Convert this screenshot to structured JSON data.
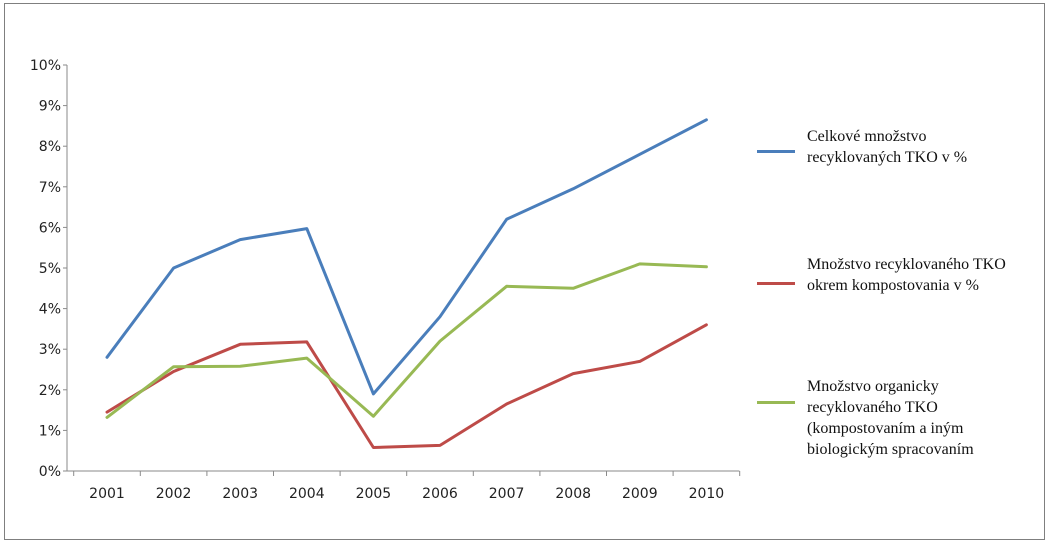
{
  "chart_data": {
    "type": "line",
    "title": "",
    "xlabel": "",
    "ylabel": "",
    "ylim": [
      0,
      10
    ],
    "y_tick_labels": [
      "0%",
      "1%",
      "2%",
      "3%",
      "4%",
      "5%",
      "6%",
      "7%",
      "8%",
      "9%",
      "10%"
    ],
    "categories": [
      "2001",
      "2002",
      "2003",
      "2004",
      "2005",
      "2006",
      "2007",
      "2008",
      "2009",
      "2010"
    ],
    "grid": false,
    "legend_position": "right",
    "series": [
      {
        "name": "Celkové množstvo\nrecyklovaných TKO v %",
        "color": "#4a7ebb",
        "values": [
          2.8,
          5.0,
          5.7,
          5.97,
          1.9,
          3.8,
          6.2,
          6.95,
          7.8,
          8.65
        ]
      },
      {
        "name": "Množstvo recyklovaného TKO\nokrem kompostovania v %",
        "color": "#be4b48",
        "values": [
          1.45,
          2.45,
          3.12,
          3.18,
          0.58,
          0.63,
          1.65,
          2.4,
          2.7,
          3.6
        ]
      },
      {
        "name": "Množstvo organicky\nrecyklovaného TKO\n(kompostovaním a iným\nbiologickým spracovaním",
        "color": "#98b954",
        "values": [
          1.32,
          2.57,
          2.58,
          2.78,
          1.35,
          3.2,
          4.55,
          4.5,
          5.1,
          5.03
        ]
      }
    ]
  }
}
